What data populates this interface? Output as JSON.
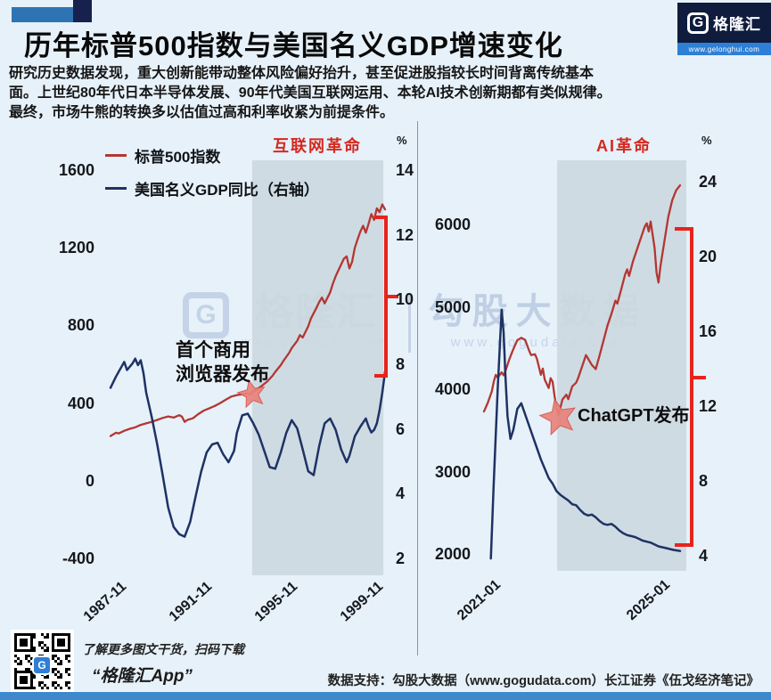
{
  "header": {
    "title": "历年标普500指数与美国名义GDP增速变化",
    "paragraph": [
      "研究历史数据发现，重大创新能带动整体风险偏好抬升，甚至促进股指较长时间背离传统基本",
      "面。上世纪80年代日本半导体发展、90年代美国互联网运用、本轮AI技术创新期都有类似规律。",
      "最终，市场牛熊的转换多以估值过高和利率收紧为前提条件。"
    ],
    "logo": {
      "g": "G",
      "brand": "格隆汇",
      "url": "www.gelonghui.com"
    }
  },
  "watermark": {
    "g": "G",
    "brand": "格隆汇",
    "brand_url": "www.gelonghui.com",
    "right_text": "勾股大数据",
    "right_url": "www.gogudata.com"
  },
  "legend": [
    {
      "label": "标普500指数",
      "color": "#b23734"
    },
    {
      "label": "美国名义GDP同比（右轴）",
      "color": "#1e3264"
    }
  ],
  "colors": {
    "background": "#e7f1f9",
    "band": "#ccd8df",
    "sp500_line": "#b23734",
    "gdp_line": "#1e3264",
    "bracket": "#e8231d",
    "band_label": "#d5281f",
    "star_fill": "#e9837b",
    "accent_blue": "#2e74b5",
    "navy": "#16224d"
  },
  "chart_data": [
    {
      "type": "line",
      "band": {
        "label": "互联网革命",
        "from": 0.516,
        "to": 0.994
      },
      "unit_right": "%",
      "left_axis": {
        "ticks": [
          1600,
          1200,
          800,
          400,
          0,
          -400
        ]
      },
      "right_axis": {
        "ticks": [
          14,
          12,
          10,
          8,
          6,
          4,
          2
        ]
      },
      "x_ticks": [
        "1987-11",
        "1991-11",
        "1995-11",
        "1999-11"
      ],
      "annotation": {
        "line1": "首个商用",
        "line2": "浏览器发布"
      },
      "star": {
        "t": 0.515,
        "value": 460,
        "axis": "left"
      },
      "series": [
        {
          "name": "标普500指数",
          "axis": "left",
          "points": [
            [
              0,
              235
            ],
            [
              0.02,
              252
            ],
            [
              0.03,
              248
            ],
            [
              0.05,
              262
            ],
            [
              0.07,
              272
            ],
            [
              0.09,
              280
            ],
            [
              0.11,
              292
            ],
            [
              0.13,
              300
            ],
            [
              0.15,
              308
            ],
            [
              0.17,
              318
            ],
            [
              0.19,
              328
            ],
            [
              0.21,
              336
            ],
            [
              0.23,
              330
            ],
            [
              0.25,
              342
            ],
            [
              0.26,
              335
            ],
            [
              0.27,
              308
            ],
            [
              0.28,
              318
            ],
            [
              0.3,
              326
            ],
            [
              0.32,
              348
            ],
            [
              0.34,
              366
            ],
            [
              0.36,
              378
            ],
            [
              0.38,
              390
            ],
            [
              0.4,
              405
            ],
            [
              0.42,
              422
            ],
            [
              0.44,
              438
            ],
            [
              0.46,
              446
            ],
            [
              0.48,
              450
            ],
            [
              0.5,
              455
            ],
            [
              0.51,
              448
            ],
            [
              0.515,
              460
            ],
            [
              0.53,
              472
            ],
            [
              0.55,
              492
            ],
            [
              0.57,
              515
            ],
            [
              0.59,
              545
            ],
            [
              0.6,
              565
            ],
            [
              0.62,
              600
            ],
            [
              0.63,
              622
            ],
            [
              0.65,
              662
            ],
            [
              0.66,
              688
            ],
            [
              0.68,
              725
            ],
            [
              0.69,
              755
            ],
            [
              0.7,
              742
            ],
            [
              0.72,
              800
            ],
            [
              0.73,
              840
            ],
            [
              0.75,
              895
            ],
            [
              0.76,
              925
            ],
            [
              0.77,
              948
            ],
            [
              0.78,
              918
            ],
            [
              0.8,
              975
            ],
            [
              0.81,
              1020
            ],
            [
              0.82,
              1058
            ],
            [
              0.83,
              1088
            ],
            [
              0.85,
              1148
            ],
            [
              0.86,
              1160
            ],
            [
              0.87,
              1098
            ],
            [
              0.88,
              1132
            ],
            [
              0.89,
              1205
            ],
            [
              0.9,
              1248
            ],
            [
              0.91,
              1288
            ],
            [
              0.92,
              1318
            ],
            [
              0.93,
              1282
            ],
            [
              0.94,
              1328
            ],
            [
              0.95,
              1378
            ],
            [
              0.96,
              1348
            ],
            [
              0.97,
              1408
            ],
            [
              0.98,
              1388
            ],
            [
              0.99,
              1428
            ],
            [
              1,
              1402
            ]
          ]
        },
        {
          "name": "美国名义GDP同比",
          "axis": "right",
          "points": [
            [
              0,
              7.3
            ],
            [
              0.02,
              7.65
            ],
            [
              0.04,
              7.95
            ],
            [
              0.05,
              8.1
            ],
            [
              0.06,
              7.85
            ],
            [
              0.08,
              8.05
            ],
            [
              0.09,
              8.2
            ],
            [
              0.1,
              8.0
            ],
            [
              0.11,
              8.15
            ],
            [
              0.12,
              7.75
            ],
            [
              0.13,
              7.15
            ],
            [
              0.15,
              6.4
            ],
            [
              0.17,
              5.55
            ],
            [
              0.19,
              4.6
            ],
            [
              0.21,
              3.6
            ],
            [
              0.23,
              3.0
            ],
            [
              0.25,
              2.78
            ],
            [
              0.27,
              2.7
            ],
            [
              0.29,
              3.15
            ],
            [
              0.31,
              3.95
            ],
            [
              0.33,
              4.7
            ],
            [
              0.35,
              5.3
            ],
            [
              0.37,
              5.55
            ],
            [
              0.39,
              5.6
            ],
            [
              0.41,
              5.25
            ],
            [
              0.43,
              5.0
            ],
            [
              0.45,
              5.35
            ],
            [
              0.46,
              5.9
            ],
            [
              0.48,
              6.45
            ],
            [
              0.5,
              6.5
            ],
            [
              0.52,
              6.2
            ],
            [
              0.54,
              5.85
            ],
            [
              0.56,
              5.35
            ],
            [
              0.58,
              4.85
            ],
            [
              0.6,
              4.8
            ],
            [
              0.62,
              5.3
            ],
            [
              0.64,
              5.9
            ],
            [
              0.66,
              6.3
            ],
            [
              0.68,
              6.05
            ],
            [
              0.7,
              5.4
            ],
            [
              0.72,
              4.72
            ],
            [
              0.74,
              4.6
            ],
            [
              0.76,
              5.5
            ],
            [
              0.78,
              6.2
            ],
            [
              0.8,
              6.35
            ],
            [
              0.82,
              6.0
            ],
            [
              0.84,
              5.4
            ],
            [
              0.86,
              5.0
            ],
            [
              0.87,
              5.2
            ],
            [
              0.89,
              5.8
            ],
            [
              0.91,
              6.1
            ],
            [
              0.93,
              6.35
            ],
            [
              0.94,
              6.1
            ],
            [
              0.95,
              5.92
            ],
            [
              0.96,
              6.0
            ],
            [
              0.97,
              6.2
            ],
            [
              0.98,
              6.6
            ],
            [
              0.99,
              7.15
            ],
            [
              1,
              7.8
            ]
          ]
        }
      ]
    },
    {
      "type": "line",
      "band": {
        "label": "AI革命",
        "from": 0.373,
        "to": 1.032
      },
      "unit_right": "%",
      "left_axis": {
        "ticks": [
          6000,
          5000,
          4000,
          3000,
          2000
        ]
      },
      "right_axis": {
        "ticks": [
          24,
          20,
          16,
          12,
          8,
          4
        ]
      },
      "x_ticks": [
        "2021-01",
        "2025-01"
      ],
      "annotation": {
        "line1": "ChatGPT发布"
      },
      "star": {
        "t": 0.38,
        "value": 3690,
        "axis": "left"
      },
      "series": [
        {
          "name": "标普500指数",
          "axis": "left",
          "points": [
            [
              0,
              3740
            ],
            [
              0.02,
              3850
            ],
            [
              0.04,
              3985
            ],
            [
              0.05,
              4105
            ],
            [
              0.06,
              4185
            ],
            [
              0.07,
              4150
            ],
            [
              0.09,
              4215
            ],
            [
              0.1,
              4180
            ],
            [
              0.11,
              4235
            ],
            [
              0.13,
              4380
            ],
            [
              0.15,
              4500
            ],
            [
              0.17,
              4605
            ],
            [
              0.19,
              4635
            ],
            [
              0.21,
              4610
            ],
            [
              0.23,
              4480
            ],
            [
              0.24,
              4425
            ],
            [
              0.26,
              4435
            ],
            [
              0.27,
              4380
            ],
            [
              0.29,
              4185
            ],
            [
              0.3,
              4260
            ],
            [
              0.31,
              4125
            ],
            [
              0.33,
              4025
            ],
            [
              0.34,
              4145
            ],
            [
              0.35,
              4100
            ],
            [
              0.36,
              3925
            ],
            [
              0.37,
              3785
            ],
            [
              0.38,
              3695
            ],
            [
              0.4,
              3885
            ],
            [
              0.42,
              3945
            ],
            [
              0.43,
              3890
            ],
            [
              0.45,
              4045
            ],
            [
              0.47,
              4090
            ],
            [
              0.48,
              4145
            ],
            [
              0.5,
              4285
            ],
            [
              0.52,
              4425
            ],
            [
              0.53,
              4385
            ],
            [
              0.55,
              4305
            ],
            [
              0.57,
              4255
            ],
            [
              0.59,
              4425
            ],
            [
              0.61,
              4605
            ],
            [
              0.63,
              4785
            ],
            [
              0.65,
              4925
            ],
            [
              0.67,
              5085
            ],
            [
              0.68,
              5050
            ],
            [
              0.7,
              5225
            ],
            [
              0.72,
              5405
            ],
            [
              0.73,
              5465
            ],
            [
              0.74,
              5385
            ],
            [
              0.76,
              5565
            ],
            [
              0.78,
              5705
            ],
            [
              0.8,
              5845
            ],
            [
              0.82,
              5985
            ],
            [
              0.83,
              6025
            ],
            [
              0.84,
              5925
            ],
            [
              0.85,
              6045
            ],
            [
              0.87,
              5725
            ],
            [
              0.88,
              5425
            ],
            [
              0.89,
              5305
            ],
            [
              0.9,
              5505
            ],
            [
              0.92,
              5805
            ],
            [
              0.94,
              6105
            ],
            [
              0.96,
              6305
            ],
            [
              0.98,
              6425
            ],
            [
              1,
              6485
            ]
          ]
        },
        {
          "name": "美国名义GDP同比",
          "axis": "right",
          "points": [
            [
              0.035,
              3.9
            ],
            [
              0.05,
              8.0
            ],
            [
              0.07,
              13.0
            ],
            [
              0.09,
              17.2
            ],
            [
              0.1,
              16.0
            ],
            [
              0.11,
              13.5
            ],
            [
              0.12,
              11.5
            ],
            [
              0.135,
              10.3
            ],
            [
              0.15,
              10.8
            ],
            [
              0.17,
              11.9
            ],
            [
              0.19,
              12.2
            ],
            [
              0.21,
              11.6
            ],
            [
              0.23,
              11.0
            ],
            [
              0.25,
              10.4
            ],
            [
              0.27,
              9.8
            ],
            [
              0.29,
              9.2
            ],
            [
              0.31,
              8.7
            ],
            [
              0.33,
              8.2
            ],
            [
              0.35,
              7.9
            ],
            [
              0.37,
              7.5
            ],
            [
              0.39,
              7.3
            ],
            [
              0.41,
              7.15
            ],
            [
              0.43,
              7.0
            ],
            [
              0.45,
              6.8
            ],
            [
              0.47,
              6.75
            ],
            [
              0.49,
              6.5
            ],
            [
              0.51,
              6.3
            ],
            [
              0.53,
              6.2
            ],
            [
              0.55,
              6.25
            ],
            [
              0.57,
              6.1
            ],
            [
              0.59,
              5.9
            ],
            [
              0.61,
              5.75
            ],
            [
              0.63,
              5.7
            ],
            [
              0.65,
              5.75
            ],
            [
              0.67,
              5.6
            ],
            [
              0.69,
              5.4
            ],
            [
              0.71,
              5.25
            ],
            [
              0.73,
              5.15
            ],
            [
              0.75,
              5.1
            ],
            [
              0.77,
              5.05
            ],
            [
              0.79,
              4.95
            ],
            [
              0.81,
              4.85
            ],
            [
              0.83,
              4.8
            ],
            [
              0.85,
              4.75
            ],
            [
              0.87,
              4.65
            ],
            [
              0.89,
              4.55
            ],
            [
              0.91,
              4.5
            ],
            [
              0.93,
              4.45
            ],
            [
              0.95,
              4.4
            ],
            [
              0.97,
              4.35
            ],
            [
              1,
              4.3
            ]
          ]
        }
      ]
    }
  ],
  "footer": {
    "qr_caption": "了解更多图文干货，扫码下载",
    "app_name": "“格隆汇App”",
    "data_support": "数据支持：勾股大数据（www.gogudata.com）长江证券《伍戈经济笔记》"
  }
}
